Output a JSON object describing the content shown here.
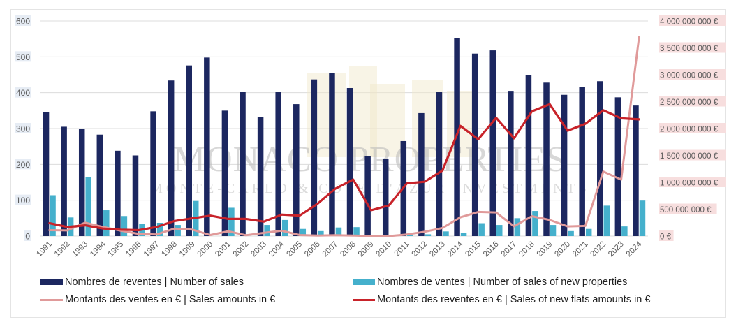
{
  "chart_data": {
    "type": "bar",
    "title": "",
    "watermark": {
      "title": "MONACO PROPERTIES",
      "subtitle": "MONTE-CARLO & COTE D'AZUR INVESTMENTS"
    },
    "categories": [
      "1991",
      "1992",
      "1993",
      "1994",
      "1995",
      "1996",
      "1997",
      "1998",
      "1999",
      "2000",
      "2001",
      "2002",
      "2003",
      "2004",
      "2005",
      "2006",
      "2007",
      "2008",
      "2009",
      "2010",
      "2011",
      "2012",
      "2013",
      "2014",
      "2015",
      "2016",
      "2017",
      "2018",
      "2019",
      "2020",
      "2021",
      "2022",
      "2023",
      "2024"
    ],
    "left_axis": {
      "ylim": [
        0,
        600
      ],
      "ticks": [
        "0",
        "100",
        "200",
        "300",
        "400",
        "500",
        "600"
      ],
      "tick_values": [
        0,
        100,
        200,
        300,
        400,
        500,
        600
      ]
    },
    "right_axis": {
      "ylim": [
        0,
        4000000000
      ],
      "ticks": [
        "0 €",
        "500 000 000 €",
        "1 000 000 000 €",
        "1 500 000 000 €",
        "2 000 000 000 €",
        "2 500 000 000 €",
        "3 000 000 000 €",
        "3 500 000 000 €",
        "4 000 000 000 €"
      ],
      "tick_values": [
        0,
        500000000,
        1000000000,
        1500000000,
        2000000000,
        2500000000,
        3000000000,
        3500000000,
        4000000000
      ]
    },
    "grid": true,
    "legend_position": "bottom",
    "series": [
      {
        "name": "Nombres de reventes | Number of sales",
        "kind": "bar",
        "axis": "left",
        "color": "#1c2760",
        "values": [
          345,
          305,
          300,
          283,
          238,
          225,
          348,
          434,
          476,
          498,
          350,
          402,
          332,
          403,
          368,
          437,
          455,
          413,
          223,
          216,
          265,
          343,
          402,
          553,
          509,
          518,
          405,
          449,
          428,
          394,
          416,
          432,
          387,
          364
        ]
      },
      {
        "name": "Nombres de ventes | Number of sales of new properties",
        "kind": "bar",
        "axis": "left",
        "color": "#45b0cc",
        "values": [
          114,
          52,
          164,
          72,
          56,
          35,
          37,
          31,
          98,
          0,
          79,
          0,
          31,
          45,
          20,
          14,
          24,
          25,
          0,
          0,
          2,
          5,
          13,
          9,
          36,
          31,
          50,
          70,
          31,
          14,
          20,
          85,
          27,
          99
        ]
      },
      {
        "name": "Montants des ventes en € | Sales amounts in €",
        "kind": "line",
        "axis": "right",
        "color": "#e09a9a",
        "values": [
          110000000,
          105000000,
          250000000,
          170000000,
          100000000,
          40000000,
          30000000,
          140000000,
          120000000,
          20000000,
          90000000,
          15000000,
          60000000,
          100000000,
          20000000,
          10000000,
          15000000,
          10000000,
          0,
          0,
          30000000,
          80000000,
          150000000,
          350000000,
          450000000,
          440000000,
          180000000,
          370000000,
          300000000,
          180000000,
          190000000,
          1200000000,
          1050000000,
          3700000000
        ]
      },
      {
        "name": "Montants des reventes en € | Sales of new flats amounts in €",
        "kind": "line",
        "axis": "right",
        "color": "#c8232a",
        "values": [
          240000000,
          170000000,
          200000000,
          140000000,
          120000000,
          110000000,
          170000000,
          280000000,
          330000000,
          380000000,
          320000000,
          320000000,
          270000000,
          400000000,
          380000000,
          600000000,
          880000000,
          1050000000,
          480000000,
          570000000,
          980000000,
          1010000000,
          1220000000,
          2050000000,
          1800000000,
          2200000000,
          1820000000,
          2320000000,
          2450000000,
          1960000000,
          2090000000,
          2340000000,
          2190000000,
          2170000000
        ]
      }
    ]
  },
  "legend": {
    "items": [
      {
        "label": "Nombres de reventes | Number of sales",
        "color": "#1c2760",
        "kind": "bar"
      },
      {
        "label": "Nombres de ventes | Number of sales of new properties",
        "color": "#45b0cc",
        "kind": "bar"
      },
      {
        "label": "Montants des ventes en € | Sales amounts in €",
        "color": "#e09a9a",
        "kind": "line"
      },
      {
        "label": "Montants des reventes en € | Sales of new flats amounts in €",
        "color": "#c8232a",
        "kind": "line"
      }
    ]
  },
  "colors": {
    "grid": "#dcdcdc",
    "left_tick_bg": "#e6ecf4",
    "right_tick_bg": "#f7dede",
    "watermark_gold": "#efe6c8"
  }
}
